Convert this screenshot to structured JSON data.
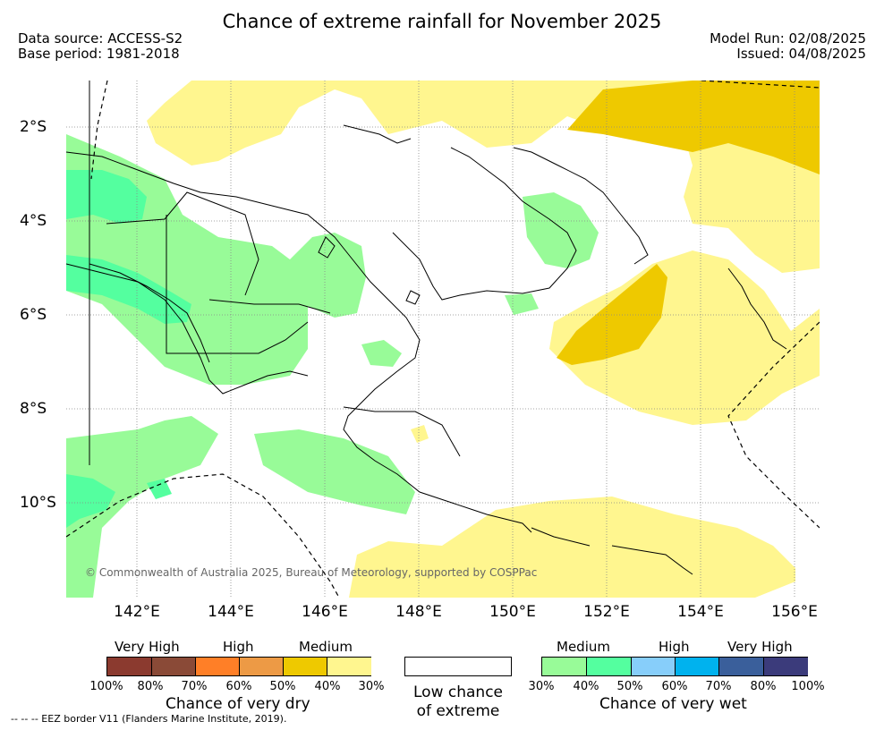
{
  "title": "Chance of extreme rainfall for November 2025",
  "header_left": {
    "line1": "Data source: ACCESS-S2",
    "line2": "Base period: 1981-2018"
  },
  "header_right": {
    "line1": "Model Run: 02/08/2025",
    "line2": "Issued: 04/08/2025"
  },
  "axes": {
    "lat_labels": [
      "2°S",
      "4°S",
      "6°S",
      "8°S",
      "10°S"
    ],
    "lon_labels": [
      "142°E",
      "144°E",
      "146°E",
      "148°E",
      "150°E",
      "152°E",
      "154°E",
      "156°E"
    ]
  },
  "copyright": "© Commonwealth of Australia 2025, Bureau of Meteorology, supported by COSPPac",
  "legend_dry": {
    "headers": [
      "Very High",
      "High",
      "Medium"
    ],
    "ticks": [
      "100%",
      "80%",
      "70%",
      "60%",
      "50%",
      "40%",
      "30%"
    ],
    "colors": [
      "#8b3a2f",
      "#8a4a37",
      "#ff7f27",
      "#ed9a45",
      "#eec900",
      "#fff68f"
    ],
    "caption": "Chance of very dry"
  },
  "legend_center": {
    "line1": "Low chance",
    "line2": "of extreme",
    "color": "#ffffff"
  },
  "legend_wet": {
    "headers": [
      "Medium",
      "High",
      "Very High"
    ],
    "ticks": [
      "30%",
      "40%",
      "50%",
      "60%",
      "70%",
      "80%",
      "100%"
    ],
    "colors": [
      "#98fb98",
      "#54ff9f",
      "#87cefa",
      "#00b2ee",
      "#3a5f9b",
      "#3b3b7b"
    ],
    "caption": "Chance of very wet"
  },
  "footnote": "--  --  -- EEZ border V11 (Flanders Marine Institute, 2019)."
}
